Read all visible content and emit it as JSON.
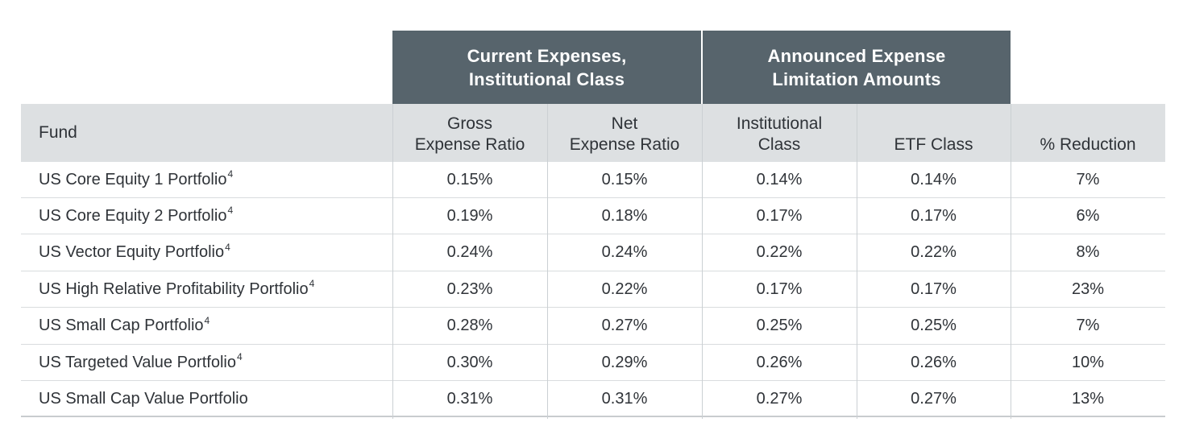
{
  "group_headers": {
    "current": "Current Expenses,\nInstitutional Class",
    "announced": "Announced Expense\nLimitation Amounts"
  },
  "columns": {
    "fund": "Fund",
    "gross": "Gross\nExpense Ratio",
    "net": "Net\nExpense Ratio",
    "institutional": "Institutional\nClass",
    "etf": "ETF Class",
    "reduction": "% Reduction"
  },
  "rows": [
    {
      "fund": "US Core Equity 1 Portfolio",
      "footnote": "4",
      "gross": "0.15%",
      "net": "0.15%",
      "institutional": "0.14%",
      "etf": "0.14%",
      "reduction": "7%"
    },
    {
      "fund": "US Core Equity 2 Portfolio",
      "footnote": "4",
      "gross": "0.19%",
      "net": "0.18%",
      "institutional": "0.17%",
      "etf": "0.17%",
      "reduction": "6%"
    },
    {
      "fund": "US Vector Equity Portfolio",
      "footnote": "4",
      "gross": "0.24%",
      "net": "0.24%",
      "institutional": "0.22%",
      "etf": "0.22%",
      "reduction": "8%"
    },
    {
      "fund": "US High Relative Profitability Portfolio",
      "footnote": "4",
      "gross": "0.23%",
      "net": "0.22%",
      "institutional": "0.17%",
      "etf": "0.17%",
      "reduction": "23%"
    },
    {
      "fund": "US Small Cap Portfolio",
      "footnote": "4",
      "gross": "0.28%",
      "net": "0.27%",
      "institutional": "0.25%",
      "etf": "0.25%",
      "reduction": "7%"
    },
    {
      "fund": "US Targeted Value Portfolio",
      "footnote": "4",
      "gross": "0.30%",
      "net": "0.29%",
      "institutional": "0.26%",
      "etf": "0.26%",
      "reduction": "10%"
    },
    {
      "fund": "US Small Cap Value Portfolio",
      "footnote": "",
      "gross": "0.31%",
      "net": "0.31%",
      "institutional": "0.27%",
      "etf": "0.27%",
      "reduction": "13%"
    }
  ],
  "colors": {
    "group_header_bg": "#57646c",
    "column_header_bg": "#dde0e2",
    "row_divider": "#d9dcde"
  }
}
